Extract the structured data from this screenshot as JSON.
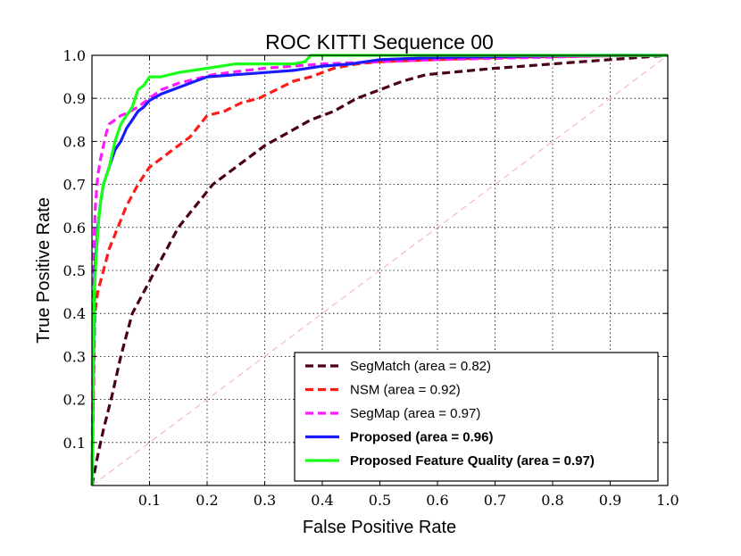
{
  "chart_data": {
    "type": "line",
    "title": "ROC KITTI Sequence 00",
    "xlabel": "False Positive Rate",
    "ylabel": "True Positive Rate",
    "xlim": [
      0,
      1
    ],
    "ylim": [
      0,
      1
    ],
    "grid": true,
    "legend_position": "bottom-right",
    "x_ticks": [
      "0.1",
      "0.2",
      "0.3",
      "0.4",
      "0.5",
      "0.6",
      "0.7",
      "0.8",
      "0.9",
      "1.0"
    ],
    "y_ticks": [
      "0.1",
      "0.2",
      "0.3",
      "0.4",
      "0.5",
      "0.6",
      "0.7",
      "0.8",
      "0.9",
      "1.0"
    ],
    "tick_values": [
      0.1,
      0.2,
      0.3,
      0.4,
      0.5,
      0.6,
      0.7,
      0.8,
      0.9,
      1.0
    ],
    "series": [
      {
        "name": "SegMatch (area = 0.82)",
        "color": "#4a0018",
        "dash": "dashed",
        "bold": false,
        "x": [
          0,
          0.01,
          0.02,
          0.035,
          0.05,
          0.06,
          0.07,
          0.09,
          0.11,
          0.13,
          0.15,
          0.18,
          0.21,
          0.24,
          0.27,
          0.3,
          0.34,
          0.38,
          0.42,
          0.46,
          0.5,
          0.54,
          0.58,
          0.62,
          0.66,
          0.7,
          0.75,
          0.8,
          0.85,
          0.9,
          0.95,
          1.0
        ],
        "y": [
          0,
          0.07,
          0.13,
          0.21,
          0.3,
          0.35,
          0.4,
          0.45,
          0.5,
          0.55,
          0.6,
          0.65,
          0.7,
          0.73,
          0.76,
          0.79,
          0.82,
          0.85,
          0.87,
          0.9,
          0.92,
          0.94,
          0.955,
          0.96,
          0.965,
          0.97,
          0.975,
          0.98,
          0.985,
          0.99,
          0.995,
          1.0
        ]
      },
      {
        "name": "NSM  (area = 0.92)",
        "color": "#ff1a1a",
        "dash": "dashed",
        "bold": false,
        "x": [
          0,
          0.005,
          0.01,
          0.02,
          0.03,
          0.045,
          0.06,
          0.08,
          0.1,
          0.12,
          0.14,
          0.17,
          0.2,
          0.23,
          0.26,
          0.29,
          0.32,
          0.35,
          0.38,
          0.42,
          0.46,
          0.5,
          0.6,
          0.7,
          0.8,
          0.9,
          1.0
        ],
        "y": [
          0,
          0.4,
          0.45,
          0.5,
          0.55,
          0.6,
          0.65,
          0.7,
          0.74,
          0.76,
          0.78,
          0.81,
          0.86,
          0.87,
          0.89,
          0.9,
          0.92,
          0.94,
          0.95,
          0.97,
          0.98,
          0.985,
          0.99,
          0.995,
          0.997,
          0.999,
          1.0
        ]
      },
      {
        "name": "SegMap  (area = 0.97)",
        "color": "#ff1aff",
        "dash": "dashed",
        "bold": false,
        "x": [
          0,
          0.003,
          0.006,
          0.01,
          0.015,
          0.02,
          0.025,
          0.03,
          0.04,
          0.05,
          0.06,
          0.08,
          0.1,
          0.12,
          0.15,
          0.18,
          0.21,
          0.25,
          0.3,
          0.35,
          0.4,
          0.5,
          0.6,
          0.7,
          0.8,
          0.9,
          1.0
        ],
        "y": [
          0,
          0.55,
          0.65,
          0.72,
          0.76,
          0.79,
          0.82,
          0.84,
          0.85,
          0.86,
          0.865,
          0.88,
          0.9,
          0.92,
          0.935,
          0.945,
          0.955,
          0.962,
          0.97,
          0.975,
          0.98,
          0.985,
          0.99,
          0.993,
          0.996,
          0.999,
          1.0
        ]
      },
      {
        "name": "Proposed  (area = 0.96)",
        "color": "#1a1aff",
        "dash": "solid",
        "bold": true,
        "x": [
          0,
          0.005,
          0.01,
          0.015,
          0.02,
          0.03,
          0.04,
          0.05,
          0.06,
          0.07,
          0.08,
          0.09,
          0.1,
          0.12,
          0.15,
          0.18,
          0.2,
          0.25,
          0.3,
          0.35,
          0.4,
          0.45,
          0.5,
          0.6,
          0.7,
          0.8,
          0.9,
          1.0
        ],
        "y": [
          0,
          0.5,
          0.6,
          0.66,
          0.7,
          0.74,
          0.78,
          0.8,
          0.83,
          0.85,
          0.87,
          0.88,
          0.895,
          0.91,
          0.925,
          0.94,
          0.95,
          0.955,
          0.96,
          0.965,
          0.975,
          0.98,
          0.99,
          0.995,
          0.997,
          0.999,
          1.0,
          1.0
        ]
      },
      {
        "name": "Proposed Feature Quality (area = 0.97)",
        "color": "#1aff1a",
        "dash": "solid",
        "bold": true,
        "x": [
          0,
          0.004,
          0.008,
          0.012,
          0.016,
          0.02,
          0.03,
          0.04,
          0.05,
          0.06,
          0.07,
          0.08,
          0.09,
          0.1,
          0.12,
          0.15,
          0.2,
          0.25,
          0.3,
          0.35,
          0.37,
          0.38,
          0.4,
          0.5,
          0.6,
          0.7,
          0.8,
          0.9,
          1.0
        ],
        "y": [
          0,
          0.45,
          0.55,
          0.62,
          0.67,
          0.7,
          0.74,
          0.8,
          0.84,
          0.86,
          0.88,
          0.92,
          0.93,
          0.95,
          0.95,
          0.96,
          0.97,
          0.98,
          0.98,
          0.98,
          0.985,
          1.0,
          1.0,
          1.0,
          1.0,
          1.0,
          1.0,
          1.0,
          1.0
        ]
      },
      {
        "name": "",
        "color": "#f4b8c4",
        "dash": "dashed",
        "bold": false,
        "reference": true,
        "x": [
          0,
          1
        ],
        "y": [
          0,
          1
        ]
      }
    ]
  }
}
